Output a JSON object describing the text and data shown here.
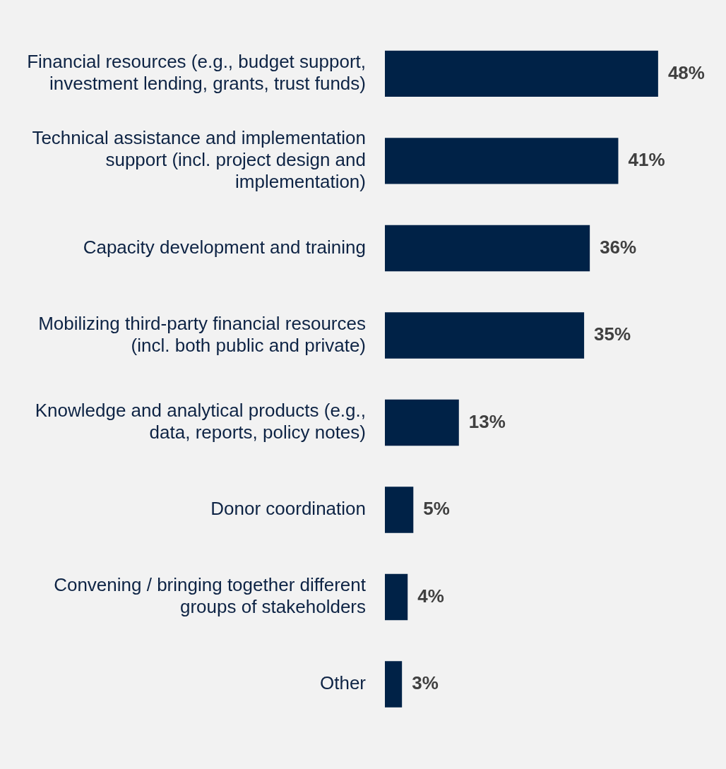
{
  "chart_data": {
    "type": "bar",
    "orientation": "horizontal",
    "categories": [
      "Financial resources (e.g., budget support, investment lending, grants, trust funds)",
      "Technical assistance and implementation support (incl. project design and implementation)",
      "Capacity development and training",
      "Mobilizing third-party financial resources (incl. both public and private)",
      "Knowledge and analytical products (e.g., data, reports, policy notes)",
      "Donor coordination",
      "Convening / bringing together different groups of stakeholders",
      "Other"
    ],
    "values": [
      48,
      41,
      36,
      35,
      13,
      5,
      4,
      3
    ],
    "value_labels": [
      "48%",
      "41%",
      "36%",
      "35%",
      "13%",
      "5%",
      "4%",
      "3%"
    ],
    "color": "#002247",
    "grid": false,
    "legend": false
  }
}
